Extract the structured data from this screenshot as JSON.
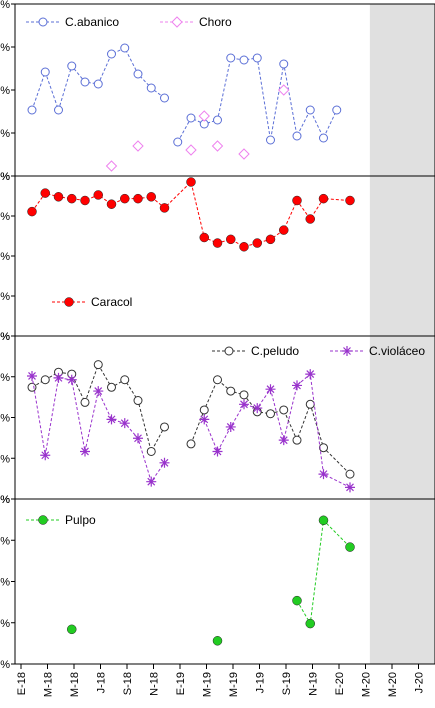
{
  "chart_data": {
    "type": "scatter",
    "x_ticks": [
      "E-18",
      "M-18",
      "M-18",
      "J-18",
      "S-18",
      "N-18",
      "E-19",
      "M-19",
      "M-19",
      "J-19",
      "S-19",
      "N-19",
      "E-20",
      "M-20",
      "M-20",
      "J-20"
    ],
    "shaded_x_range": [
      26,
      31
    ],
    "colors": {
      "abanico": "#5b6fd6",
      "choro": "#ee82ee",
      "caracol": "#ff0000",
      "peludo": "#333333",
      "violaceo": "#9933cc",
      "pulpo": "#22cc22",
      "shade": "#e0e0e0"
    },
    "panels": [
      {
        "ylim": [
          0,
          40
        ],
        "series": [
          {
            "name": "C.abanico",
            "marker": "circle-open",
            "color": "#5b6fd6",
            "connected": true,
            "x": [
              0,
              1,
              2,
              3,
              4,
              5,
              6,
              7,
              8,
              9,
              10,
              11,
              12,
              13,
              14,
              15,
              16,
              17,
              18,
              19,
              20,
              21,
              22,
              23
            ],
            "y": [
              15,
              24.5,
              15,
              26,
              22,
              21.5,
              29,
              30.5,
              24,
              20.5,
              18,
              7,
              13,
              11.5,
              12.5,
              28,
              27.5,
              28,
              7.5,
              26.5,
              8.5,
              15,
              8,
              15
            ],
            "breaks_after": [
              10
            ]
          },
          {
            "name": "Choro",
            "marker": "diamond-open",
            "color": "#ee82ee",
            "connected": false,
            "x": [
              6,
              8,
              12,
              13,
              14,
              16,
              19
            ],
            "y": [
              1,
              6,
              5,
              13.5,
              6,
              4,
              20
            ]
          }
        ]
      },
      {
        "ylim": [
          0,
          40
        ],
        "series": [
          {
            "name": "Caracol",
            "marker": "circle-filled",
            "color": "#ff0000",
            "connected": true,
            "x": [
              0,
              1,
              2,
              3,
              4,
              5,
              6,
              7,
              8,
              9,
              10,
              12,
              13,
              14,
              15,
              16,
              17,
              18,
              19,
              20,
              21,
              22,
              24
            ],
            "y": [
              32,
              37,
              36,
              35.5,
              35,
              36.5,
              34,
              35.5,
              35.5,
              36,
              33,
              40,
              25,
              23.5,
              24.5,
              22.5,
              23.5,
              24.5,
              27,
              35,
              30,
              35.5,
              35
            ]
          }
        ]
      },
      {
        "ylim": [
          0,
          40
        ],
        "series": [
          {
            "name": "C.peludo",
            "marker": "circle-open",
            "color": "#333333",
            "connected": true,
            "x": [
              0,
              1,
              2,
              3,
              4,
              5,
              6,
              7,
              8,
              9,
              10,
              12,
              13,
              14,
              15,
              16,
              17,
              18,
              19,
              20,
              21,
              22,
              24
            ],
            "y": [
              28,
              30,
              32,
              31.5,
              24,
              34,
              28,
              30,
              24.5,
              11,
              17.5,
              13,
              22,
              30,
              27,
              26,
              21.5,
              21,
              22,
              14,
              23.5,
              12,
              5
            ],
            "breaks_after": [
              10
            ]
          },
          {
            "name": "C.violáceo",
            "marker": "star",
            "color": "#9933cc",
            "connected": true,
            "x": [
              0,
              1,
              2,
              3,
              4,
              5,
              6,
              7,
              8,
              9,
              10,
              13,
              14,
              15,
              16,
              17,
              18,
              19,
              20,
              21,
              22,
              24
            ],
            "y": [
              31,
              10,
              30.5,
              30,
              11,
              27,
              19.5,
              18.5,
              14.5,
              3,
              8,
              19.5,
              11,
              17.5,
              23.5,
              22.5,
              27.5,
              14,
              28.5,
              31.5,
              5,
              1.5
            ],
            "breaks_after": [
              10
            ]
          }
        ]
      },
      {
        "ylim": [
          0,
          40
        ],
        "series": [
          {
            "name": "Pulpo",
            "marker": "circle-filled",
            "color": "#22cc22",
            "connected": true,
            "x": [
              3,
              14,
              20,
              21,
              22,
              24
            ],
            "y": [
              7.5,
              4.5,
              15,
              9,
              36,
              29
            ],
            "connect_from_index": 2
          }
        ]
      }
    ]
  }
}
